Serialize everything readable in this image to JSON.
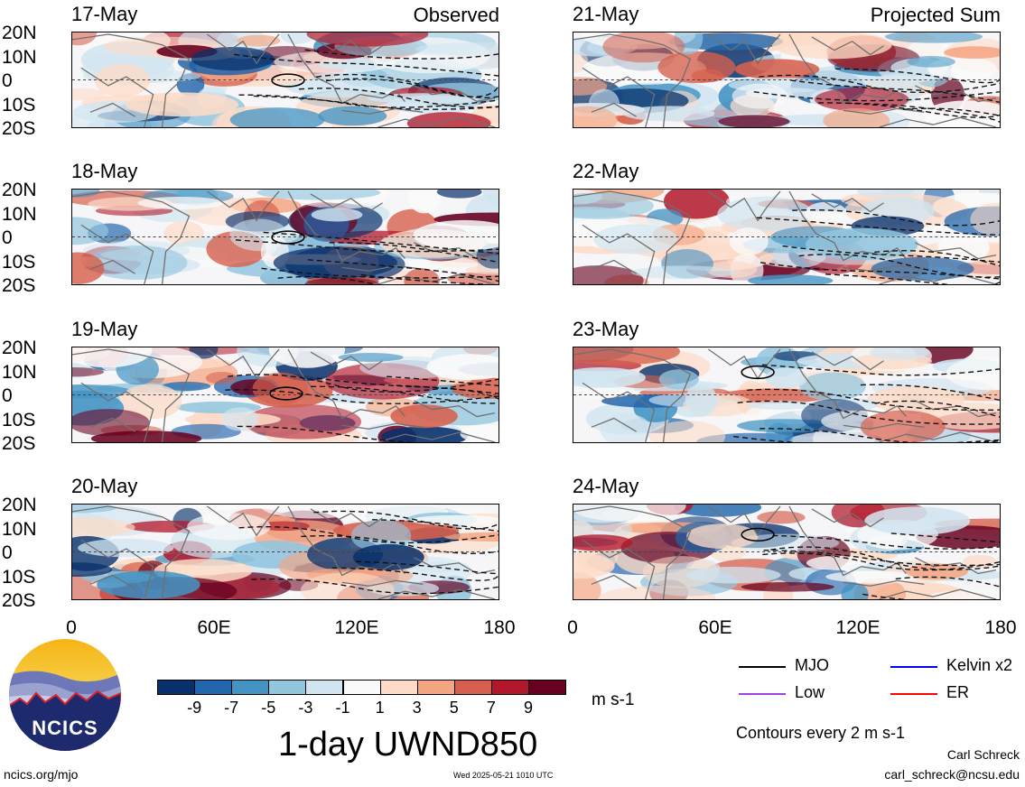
{
  "panels_left": [
    {
      "date": "17-May",
      "title": "Observed"
    },
    {
      "date": "18-May",
      "title": ""
    },
    {
      "date": "19-May",
      "title": ""
    },
    {
      "date": "20-May",
      "title": ""
    }
  ],
  "panels_right": [
    {
      "date": "21-May",
      "title": "Projected Sum"
    },
    {
      "date": "22-May",
      "title": ""
    },
    {
      "date": "23-May",
      "title": ""
    },
    {
      "date": "24-May",
      "title": ""
    }
  ],
  "lat_labels": [
    "20N",
    "10N",
    "0",
    "10S",
    "20S"
  ],
  "lon_labels": [
    "0",
    "60E",
    "120E",
    "180"
  ],
  "colorbar": {
    "ticks": [
      "-9",
      "-7",
      "-5",
      "-3",
      "-1",
      "1",
      "3",
      "5",
      "7",
      "9"
    ],
    "colors": [
      "#08306b",
      "#2166ac",
      "#4393c3",
      "#92c5de",
      "#d1e5f0",
      "#fafafa",
      "#fddbc7",
      "#f4a582",
      "#d6604d",
      "#b2182b",
      "#67001f"
    ],
    "units": "m s-1"
  },
  "title": "1-day UWND850",
  "legend": [
    {
      "label": "MJO",
      "color": "#000000"
    },
    {
      "label": "Kelvin x2",
      "color": "#0000ff"
    },
    {
      "label": "Low",
      "color": "#a040e0"
    },
    {
      "label": "ER",
      "color": "#ff0000"
    }
  ],
  "contour_note": "Contours every 2 m s-1",
  "author": "Carl Schreck",
  "email": "carl_schreck@ncsu.edu",
  "site": "ncics.org/mjo",
  "timestamp": "Wed 2025-05-21 1010 UTC",
  "logo_text": "NCICS"
}
